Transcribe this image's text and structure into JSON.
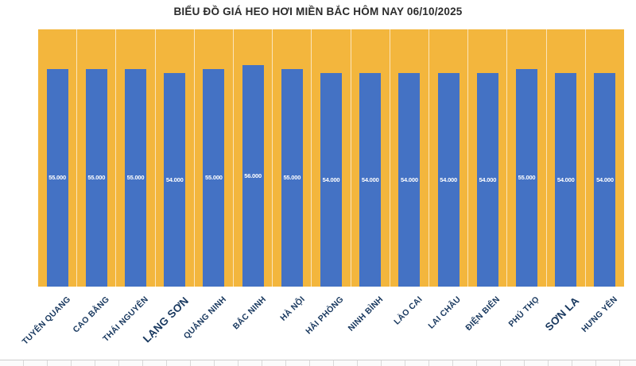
{
  "title": "BIỂU ĐỒ GIÁ HEO HƠI MIỀN BẮC HÔM NAY 06/10/2025",
  "chart_data": {
    "type": "bar",
    "title": "BIỂU ĐỒ GIÁ HEO HƠI MIỀN BẮC HÔM NAY 06/10/2025",
    "categories": [
      "TUYÊN QUANG",
      "CAO BẰNG",
      "THÁI NGUYÊN",
      "LẠNG SƠN",
      "QUẢNG NINH",
      "BẮC NINH",
      "HÀ NỘI",
      "HẢI PHÒNG",
      "NINH BÌNH",
      "LÀO CAI",
      "LAI CHÂU",
      "ĐIỆN BIÊN",
      "PHÚ THỌ",
      "SƠN LA",
      "HƯNG YÊN"
    ],
    "values": [
      55000,
      55000,
      55000,
      54000,
      55000,
      56000,
      55000,
      54000,
      54000,
      54000,
      54000,
      54000,
      55000,
      54000,
      54000
    ],
    "value_labels": [
      "55.000",
      "55.000",
      "55.000",
      "54.000",
      "55.000",
      "56.000",
      "55.000",
      "54.000",
      "54.000",
      "54.000",
      "54.000",
      "54.000",
      "55.000",
      "54.000",
      "54.000"
    ],
    "large_labels": [
      "LẠNG SƠN",
      "SƠN LA"
    ],
    "xlabel": "",
    "ylabel": "",
    "ylim": [
      0,
      65000
    ],
    "grid": false,
    "legend": "none",
    "bar_color": "#4472C4",
    "plot_background": "#F3B63D",
    "category_label_color": "#17375E",
    "value_label_color": "#FFFFFF"
  }
}
